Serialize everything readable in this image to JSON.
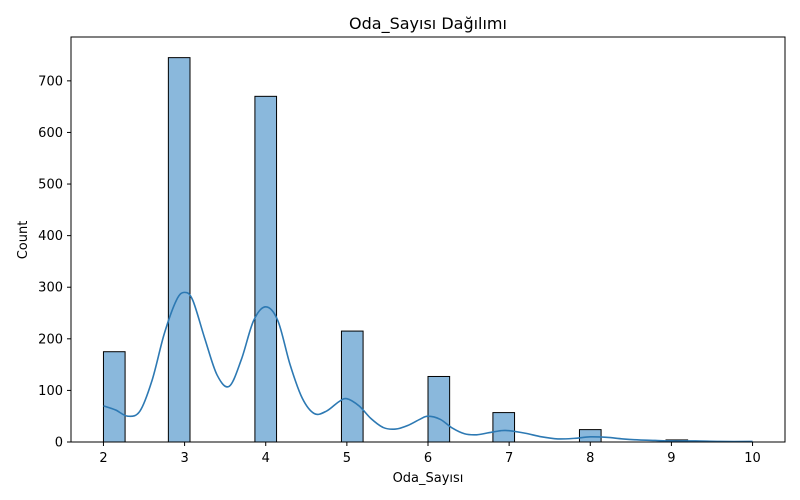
{
  "chart_data": {
    "type": "bar",
    "subtype": "histogram-with-kde",
    "title": "Oda_Sayısı Dağılımı",
    "xlabel": "Oda_Sayısı",
    "ylabel": "Count",
    "xlim": [
      1.6,
      10.4
    ],
    "ylim": [
      0,
      785
    ],
    "x_ticks": [
      2,
      3,
      4,
      5,
      6,
      7,
      8,
      9,
      10
    ],
    "y_ticks": [
      0,
      100,
      200,
      300,
      400,
      500,
      600,
      700
    ],
    "bar_width": 0.2667,
    "bars": [
      {
        "x_start": 2.0,
        "count": 175
      },
      {
        "x_start": 2.8,
        "count": 745
      },
      {
        "x_start": 3.8667,
        "count": 670
      },
      {
        "x_start": 4.9333,
        "count": 215
      },
      {
        "x_start": 6.0,
        "count": 127
      },
      {
        "x_start": 6.8,
        "count": 57
      },
      {
        "x_start": 7.8667,
        "count": 24
      },
      {
        "x_start": 8.9333,
        "count": 4
      }
    ],
    "kde": {
      "x": [
        2.0,
        2.15,
        2.3,
        2.45,
        2.6,
        2.75,
        2.9,
        3.0,
        3.1,
        3.25,
        3.4,
        3.55,
        3.7,
        3.85,
        4.0,
        4.15,
        4.3,
        4.45,
        4.6,
        4.75,
        4.9,
        5.0,
        5.15,
        5.3,
        5.45,
        5.6,
        5.75,
        5.9,
        6.0,
        6.15,
        6.3,
        6.45,
        6.6,
        6.75,
        6.9,
        7.0,
        7.2,
        7.4,
        7.6,
        7.8,
        8.0,
        8.2,
        8.4,
        8.6,
        8.8,
        9.0,
        9.3,
        9.6,
        10.0
      ],
      "y": [
        70,
        62,
        50,
        60,
        120,
        210,
        275,
        290,
        275,
        200,
        130,
        108,
        160,
        235,
        262,
        235,
        150,
        85,
        55,
        60,
        78,
        84,
        70,
        45,
        28,
        25,
        32,
        44,
        50,
        44,
        27,
        16,
        14,
        18,
        22,
        22,
        17,
        10,
        6,
        7,
        10,
        9,
        6,
        4,
        3,
        2,
        2,
        1,
        1
      ]
    },
    "colors": {
      "bar_fill": "#8ab8dc",
      "bar_edge": "#000000",
      "kde_line": "#2d79b3"
    },
    "grid": false,
    "legend": "none"
  }
}
